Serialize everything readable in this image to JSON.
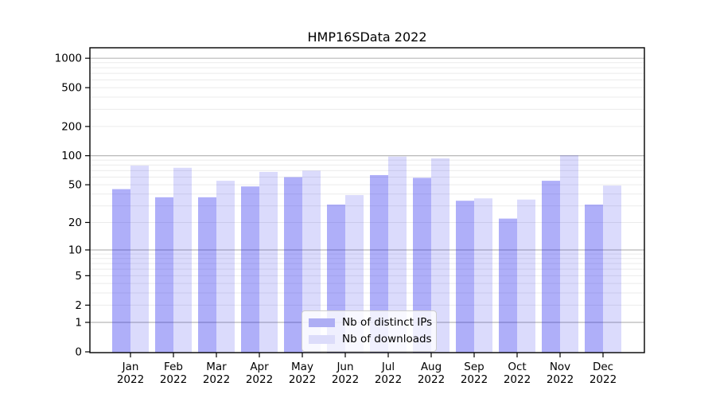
{
  "title": "HMP16SData 2022",
  "colors": {
    "bar_base": "#2222ee",
    "ips_opacity": 0.36,
    "downloads_opacity": 0.16,
    "ips_solid": "#aeaef4",
    "downloads_solid": "#dcdcfa",
    "major_grid": "#b8b8b8",
    "minor_grid": "#ebebeb",
    "frame": "#000000",
    "text": "#000000"
  },
  "legend": {
    "items": [
      {
        "label": "Nb of distinct IPs",
        "color_key": "ips"
      },
      {
        "label": "Nb of downloads",
        "color_key": "downloads"
      }
    ],
    "position": "lower center"
  },
  "chart_data": {
    "type": "bar",
    "title": "HMP16SData 2022",
    "categories": [
      "Jan 2022",
      "Feb 2022",
      "Mar 2022",
      "Apr 2022",
      "May 2022",
      "Jun 2022",
      "Jul 2022",
      "Aug 2022",
      "Sep 2022",
      "Oct 2022",
      "Nov 2022",
      "Dec 2022"
    ],
    "series": [
      {
        "name": "Nb of distinct IPs",
        "values": [
          45,
          37,
          37,
          48,
          60,
          31,
          63,
          59,
          34,
          22,
          55,
          31
        ]
      },
      {
        "name": "Nb of downloads",
        "values": [
          79,
          75,
          55,
          68,
          70,
          39,
          98,
          94,
          36,
          35,
          101,
          49
        ]
      }
    ],
    "xlabel": "",
    "ylabel": "",
    "yscale": "log1p",
    "ylim": [
      0,
      1280
    ],
    "yticks": [
      0,
      1,
      2,
      5,
      10,
      20,
      50,
      100,
      200,
      500,
      1000
    ],
    "minor_grid_values": [
      2,
      3,
      4,
      5,
      6,
      7,
      8,
      9,
      20,
      30,
      40,
      50,
      60,
      70,
      80,
      90,
      200,
      300,
      400,
      500,
      600,
      700,
      800,
      900
    ],
    "major_grid_values": [
      1,
      10,
      100,
      1000
    ],
    "grid": true,
    "legend_position": "lower center"
  }
}
